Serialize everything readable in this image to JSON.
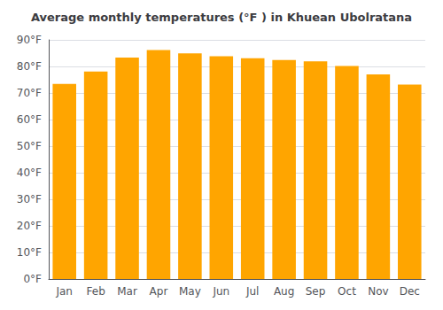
{
  "chart_data": {
    "type": "bar",
    "title": "Average monthly temperatures (°F ) in Khuean Ubolratana",
    "categories": [
      "Jan",
      "Feb",
      "Mar",
      "Apr",
      "May",
      "Jun",
      "Jul",
      "Aug",
      "Sep",
      "Oct",
      "Nov",
      "Dec"
    ],
    "values": [
      73.4,
      78.1,
      83.3,
      86.2,
      84.9,
      83.8,
      83.1,
      82.4,
      81.9,
      80.2,
      77.0,
      73.2
    ],
    "color": "#FFA500",
    "ylim": [
      0,
      90
    ],
    "yticks": [
      {
        "value": 0,
        "label": "0°F"
      },
      {
        "value": 10,
        "label": "10°F"
      },
      {
        "value": 20,
        "label": "20°F"
      },
      {
        "value": 30,
        "label": "30°F"
      },
      {
        "value": 40,
        "label": "40°F"
      },
      {
        "value": 50,
        "label": "50°F"
      },
      {
        "value": 60,
        "label": "60°F"
      },
      {
        "value": 70,
        "label": "70°F"
      },
      {
        "value": 80,
        "label": "80°F"
      },
      {
        "value": 90,
        "label": "90°F"
      }
    ],
    "grid": true
  }
}
